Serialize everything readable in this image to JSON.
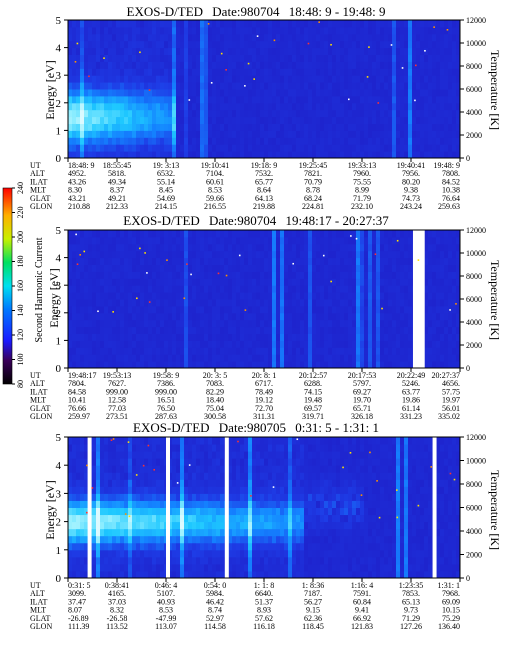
{
  "chart_data": [
    {
      "type": "heatmap",
      "title": "EXOS-D/TED",
      "date": "Date:980704",
      "time_range": "18:48: 9 - 19:48: 9",
      "ylabel": "Energy [eV]",
      "y2label": "Temperature [K]",
      "ylim": [
        0,
        5
      ],
      "y2lim": [
        0,
        12000
      ],
      "yticks": [
        "0",
        "1",
        "2",
        "3",
        "4",
        "5"
      ],
      "y2ticks": [
        "0",
        "2000",
        "4000",
        "6000",
        "8000",
        "10000",
        "12000"
      ],
      "orbit_rows": [
        "UT",
        "ALT",
        "ILAT",
        "MLT",
        "GLAT",
        "GLON"
      ],
      "orbit_columns": [
        [
          "18:48: 9",
          "4952.",
          "43.26",
          "8.30",
          "43.21",
          "210.88"
        ],
        [
          "18:55:45",
          "5818.",
          "49.34",
          "8.37",
          "49.21",
          "212.33"
        ],
        [
          "19: 3:13",
          "6532.",
          "55.14",
          "8.45",
          "54.69",
          "214.15"
        ],
        [
          "19:10:41",
          "7104.",
          "60.61",
          "8.53",
          "59.66",
          "216.55"
        ],
        [
          "19:18: 9",
          "7532.",
          "65.77",
          "8.64",
          "64.13",
          "219.88"
        ],
        [
          "19:25:45",
          "7821.",
          "70.79",
          "8.78",
          "68.24",
          "224.81"
        ],
        [
          "19:33:13",
          "7960.",
          "75.55",
          "8.99",
          "71.79",
          "232.10"
        ],
        [
          "19:40:41",
          "7956.",
          "80.20",
          "9.38",
          "74.73",
          "243.24"
        ],
        [
          "19:48: 9",
          "7808.",
          "84.52",
          "10.38",
          "76.64",
          "259.63"
        ]
      ],
      "features": {
        "band_center_eV": 1.5,
        "band_width_eV": 1.5,
        "band_end_fraction": 0.27,
        "background_level": 100
      }
    },
    {
      "type": "heatmap",
      "title": "EXOS-D/TED",
      "date": "Date:980704",
      "time_range": "19:48:17 - 20:27:37",
      "ylabel": "Energy [eV]",
      "y2label": "Temperature [K]",
      "ylim": [
        0,
        5
      ],
      "y2lim": [
        0,
        12000
      ],
      "yticks": [
        "0",
        "1",
        "2",
        "3",
        "4",
        "5"
      ],
      "y2ticks": [
        "0",
        "2000",
        "4000",
        "6000",
        "8000",
        "10000",
        "12000"
      ],
      "orbit_rows": [
        "UT",
        "ALT",
        "ILAT",
        "MLT",
        "GLAT",
        "GLON"
      ],
      "orbit_columns": [
        [
          "19:48:17",
          "7804.",
          "84.58",
          "10.41",
          "76.66",
          "259.97"
        ],
        [
          "19:53:13",
          "7627.",
          "999.00",
          "12.58",
          "77.03",
          "273.51"
        ],
        [
          "19:58: 9",
          "7386.",
          "999.00",
          "16.51",
          "76.50",
          "287.63"
        ],
        [
          "20: 3: 5",
          "7083.",
          "82.29",
          "18.40",
          "75.04",
          "300.58"
        ],
        [
          "20: 8: 1",
          "6717.",
          "78.49",
          "19.12",
          "72.70",
          "311.31"
        ],
        [
          "20:12:57",
          "6288.",
          "74.15",
          "19.48",
          "69.57",
          "319.71"
        ],
        [
          "20:17:53",
          "5797.",
          "69.27",
          "19.70",
          "65.71",
          "326.18"
        ],
        [
          "20:22:49",
          "5246.",
          "63.77",
          "19.86",
          "61.14",
          "331.23"
        ],
        [
          "20:27:37",
          "4656.",
          "57.75",
          "19.97",
          "56.01",
          "335.02"
        ]
      ],
      "features": {
        "data_gap_start_fraction": 0.88,
        "data_gap_end_fraction": 0.91,
        "background_level": 100
      }
    },
    {
      "type": "heatmap",
      "title": "EXOS-D/TED",
      "date": "Date:980705",
      "time_range": "0:31: 5 - 1:31: 1",
      "ylabel": "Energy [eV]",
      "y2label": "Temperature [K]",
      "ylim": [
        0,
        5
      ],
      "y2lim": [
        0,
        12000
      ],
      "yticks": [
        "0",
        "1",
        "2",
        "3",
        "4",
        "5"
      ],
      "y2ticks": [
        "0",
        "2000",
        "4000",
        "6000",
        "8000",
        "10000",
        "12000"
      ],
      "orbit_rows": [
        "UT",
        "ALT",
        "ILAT",
        "MLT",
        "GLAT",
        "GLON"
      ],
      "orbit_columns": [
        [
          "0:31: 5",
          "3099.",
          "37.47",
          "8.07",
          "-26.89",
          "111.39"
        ],
        [
          "0:38:41",
          "4165.",
          "37.03",
          "8.32",
          "-26.58",
          "113.52"
        ],
        [
          "0:46: 4",
          "5107.",
          "40.93",
          "8.53",
          "-47.99",
          "113.07"
        ],
        [
          "0:54: 0",
          "5984.",
          "46.42",
          "8.74",
          "52.97",
          "114.58"
        ],
        [
          "1: 1: 8",
          "6640.",
          "51.37",
          "8.93",
          "57.62",
          "116.18"
        ],
        [
          "1: 8:36",
          "7187.",
          "56.27",
          "9.15",
          "62.36",
          "118.45"
        ],
        [
          "1:16: 4",
          "7591.",
          "60.84",
          "9.41",
          "66.92",
          "121.83"
        ],
        [
          "1:23:35",
          "7853.",
          "65.13",
          "9.73",
          "71.29",
          "127.26"
        ],
        [
          "1:31: 1",
          "7968.",
          "69.09",
          "10.15",
          "75.29",
          "136.40"
        ]
      ],
      "features": {
        "band_center_eV": 2.0,
        "band_end_fraction": 0.6,
        "gaps_fraction": [
          0.05,
          0.25,
          0.4,
          0.93
        ],
        "background_level": 100
      }
    }
  ],
  "colorbar": {
    "label": "Second Harmonic Current",
    "ticks": [
      "80",
      "100",
      "120",
      "140",
      "160",
      "180",
      "200",
      "220",
      "240"
    ],
    "range": [
      80,
      240
    ]
  }
}
